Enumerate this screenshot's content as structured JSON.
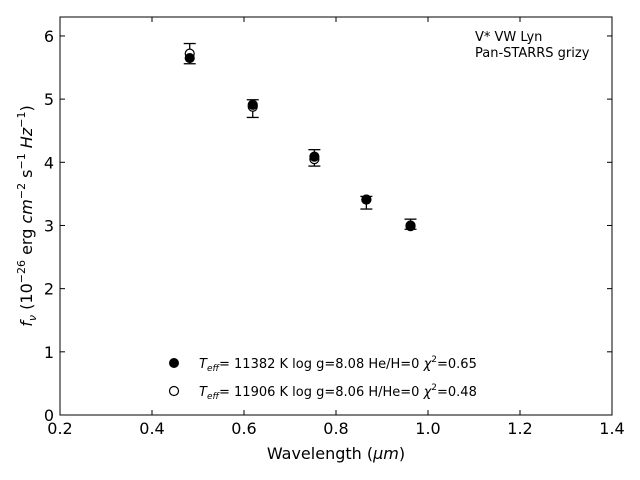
{
  "chart_data": {
    "type": "scatter",
    "xlabel": "Wavelength (",
    "xlabel_unit": "μm",
    "xlabel_close": ")",
    "ylabel_f": "f",
    "ylabel_sub": "ν",
    "ylabel_rest_1": " (10",
    "ylabel_exp_1": "−26",
    "ylabel_rest_2": " erg ",
    "ylabel_cm": "cm",
    "ylabel_exp_2": "−2",
    "ylabel_s": " s",
    "ylabel_exp_3": "−1",
    "ylabel_hz": " Hz",
    "ylabel_exp_4": "−1",
    "ylabel_close": ")",
    "xlim": [
      0.2,
      1.4
    ],
    "ylim": [
      0,
      6.3
    ],
    "xticks": [
      "0.2",
      "0.4",
      "0.6",
      "0.8",
      "1.0",
      "1.2",
      "1.4"
    ],
    "yticks": [
      "0",
      "1",
      "2",
      "3",
      "4",
      "5",
      "6"
    ],
    "annotation": [
      "V* VW Lyn",
      "Pan-STARRS grizy"
    ],
    "observed": {
      "x": [
        0.482,
        0.619,
        0.753,
        0.866,
        0.962
      ],
      "y": [
        5.72,
        4.85,
        4.07,
        3.36,
        3.02
      ],
      "err": [
        0.16,
        0.14,
        0.13,
        0.1,
        0.08
      ]
    },
    "models": [
      {
        "marker": "filled",
        "teff_label": "T",
        "teff_sub": "eff",
        "text": "= 11382 K  log g=8.08  He/H=0  ",
        "chi_label": "χ",
        "chi_sup": "2",
        "chi_value": "=0.65",
        "x": [
          0.482,
          0.619,
          0.753,
          0.866,
          0.962
        ],
        "y": [
          5.65,
          4.91,
          4.09,
          3.41,
          2.99
        ]
      },
      {
        "marker": "open",
        "teff_label": "T",
        "teff_sub": "eff",
        "text": "= 11906 K  log g=8.06  H/He=0  ",
        "chi_label": "χ",
        "chi_sup": "2",
        "chi_value": "=0.48",
        "x": [
          0.482,
          0.619,
          0.753,
          0.866,
          0.962
        ],
        "y": [
          5.72,
          4.88,
          4.05,
          3.41,
          3.0
        ]
      }
    ]
  }
}
